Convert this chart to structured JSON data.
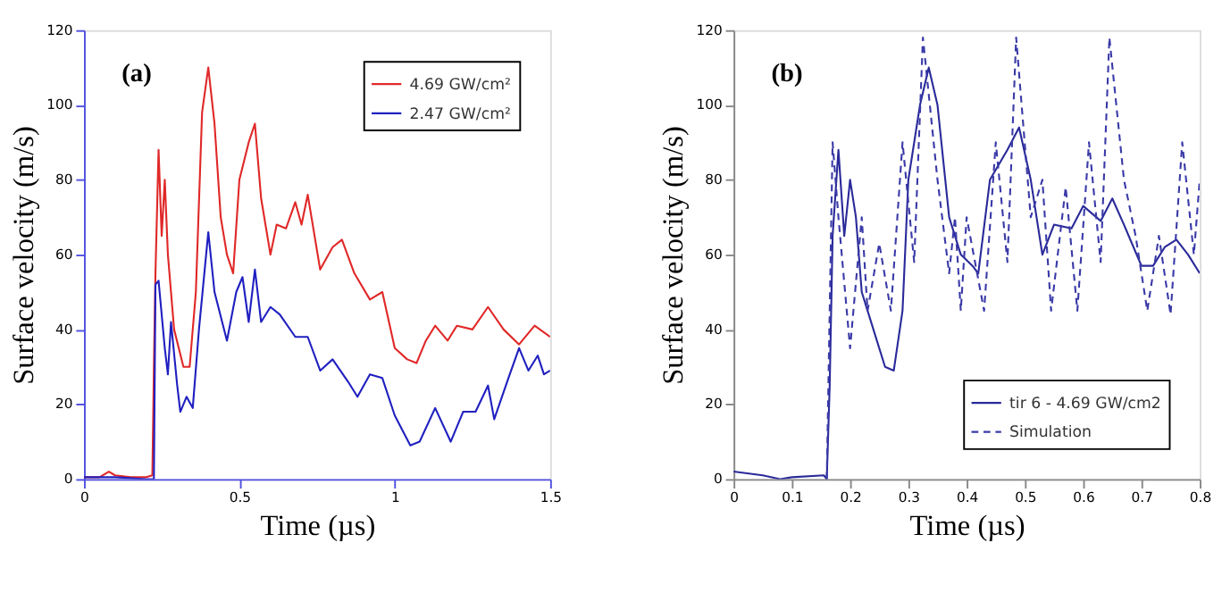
{
  "chart_data": [
    {
      "type": "line",
      "annotations": [
        "(a)"
      ],
      "xlabel": "Time (µs)",
      "ylabel": "Surface velocity (m/s)",
      "xlim": [
        0,
        1.5
      ],
      "xticks": [
        0,
        0.5,
        1,
        1.5
      ],
      "ylim": [
        0,
        120
      ],
      "yticks": [
        0,
        20,
        40,
        60,
        80,
        100,
        120
      ],
      "grid": false,
      "legend": "top right",
      "line_style": "solid",
      "series": [
        {
          "name": "4.69 GW/cm²",
          "color": "#e02828",
          "x": [
            0,
            0.05,
            0.08,
            0.1,
            0.15,
            0.2,
            0.22,
            0.225,
            0.23,
            0.24,
            0.25,
            0.26,
            0.27,
            0.29,
            0.32,
            0.34,
            0.36,
            0.38,
            0.4,
            0.42,
            0.44,
            0.46,
            0.48,
            0.5,
            0.53,
            0.55,
            0.57,
            0.6,
            0.62,
            0.65,
            0.68,
            0.7,
            0.72,
            0.76,
            0.8,
            0.83,
            0.87,
            0.92,
            0.96,
            1.0,
            1.04,
            1.07,
            1.1,
            1.13,
            1.17,
            1.2,
            1.25,
            1.3,
            1.35,
            1.4,
            1.45,
            1.5
          ],
          "values": [
            0.5,
            0.5,
            2,
            1,
            0.5,
            0.5,
            1,
            30,
            55,
            88,
            65,
            80,
            60,
            40,
            30,
            30,
            50,
            98,
            110,
            95,
            70,
            60,
            55,
            80,
            90,
            95,
            75,
            60,
            68,
            67,
            74,
            68,
            76,
            56,
            62,
            64,
            55,
            48,
            50,
            35,
            32,
            31,
            37,
            41,
            37,
            41,
            40,
            46,
            40,
            36,
            41,
            38
          ]
        },
        {
          "name": "2.47 GW/cm²",
          "color": "#2020c0",
          "x": [
            0,
            0.1,
            0.2,
            0.225,
            0.23,
            0.24,
            0.26,
            0.27,
            0.28,
            0.3,
            0.31,
            0.33,
            0.35,
            0.37,
            0.4,
            0.42,
            0.46,
            0.49,
            0.51,
            0.53,
            0.55,
            0.57,
            0.6,
            0.63,
            0.68,
            0.72,
            0.76,
            0.8,
            0.85,
            0.88,
            0.92,
            0.96,
            1.0,
            1.05,
            1.08,
            1.13,
            1.18,
            1.22,
            1.26,
            1.3,
            1.32,
            1.37,
            1.4,
            1.43,
            1.46,
            1.48,
            1.5
          ],
          "values": [
            0.5,
            0.5,
            0,
            0,
            52,
            53,
            35,
            28,
            42,
            25,
            18,
            22,
            19,
            40,
            66,
            50,
            37,
            50,
            54,
            42,
            56,
            42,
            46,
            44,
            38,
            38,
            29,
            32,
            26,
            22,
            28,
            27,
            17,
            9,
            10,
            19,
            10,
            18,
            18,
            25,
            16,
            28,
            35,
            29,
            33,
            28,
            29
          ]
        }
      ]
    },
    {
      "type": "line",
      "annotations": [
        "(b)"
      ],
      "xlabel": "Time (µs)",
      "ylabel": "Surface velocity (m/s)",
      "xlim": [
        0,
        0.8
      ],
      "xticks": [
        0,
        0.1,
        0.2,
        0.3,
        0.4,
        0.5,
        0.6,
        0.7,
        0.8
      ],
      "ylim": [
        0,
        120
      ],
      "yticks": [
        0,
        20,
        40,
        60,
        80,
        100,
        120
      ],
      "grid": false,
      "legend": "bottom right",
      "series": [
        {
          "name": "tir 6 - 4.69 GW/cm2",
          "color": "#2a2a9a",
          "line_style": "solid",
          "x": [
            0,
            0.05,
            0.08,
            0.1,
            0.155,
            0.16,
            0.165,
            0.17,
            0.18,
            0.19,
            0.2,
            0.21,
            0.22,
            0.24,
            0.26,
            0.275,
            0.29,
            0.3,
            0.32,
            0.335,
            0.35,
            0.37,
            0.39,
            0.41,
            0.42,
            0.44,
            0.47,
            0.49,
            0.51,
            0.53,
            0.55,
            0.58,
            0.6,
            0.63,
            0.65,
            0.67,
            0.7,
            0.72,
            0.74,
            0.76,
            0.78,
            0.8
          ],
          "values": [
            2,
            1,
            0,
            0.5,
            1,
            0,
            25,
            65,
            88,
            65,
            80,
            70,
            50,
            40,
            30,
            29,
            45,
            80,
            100,
            110,
            100,
            70,
            60,
            57,
            55,
            80,
            88,
            94,
            80,
            60,
            68,
            67,
            73,
            69,
            75,
            68,
            57,
            57,
            62,
            64,
            60,
            55
          ]
        },
        {
          "name": "Simulation",
          "color": "#3a3aa8",
          "line_style": "dashed",
          "x": [
            0.16,
            0.17,
            0.18,
            0.2,
            0.22,
            0.23,
            0.25,
            0.27,
            0.29,
            0.31,
            0.325,
            0.35,
            0.37,
            0.38,
            0.39,
            0.4,
            0.43,
            0.45,
            0.47,
            0.485,
            0.51,
            0.53,
            0.545,
            0.57,
            0.59,
            0.61,
            0.63,
            0.645,
            0.67,
            0.69,
            0.71,
            0.73,
            0.75,
            0.77,
            0.79,
            0.8
          ],
          "values": [
            0,
            90,
            70,
            35,
            70,
            45,
            63,
            45,
            90,
            58,
            118,
            80,
            55,
            70,
            45,
            70,
            45,
            90,
            58,
            118,
            70,
            80,
            45,
            78,
            45,
            90,
            58,
            118,
            80,
            65,
            45,
            65,
            44,
            90,
            60,
            80
          ]
        }
      ]
    }
  ]
}
